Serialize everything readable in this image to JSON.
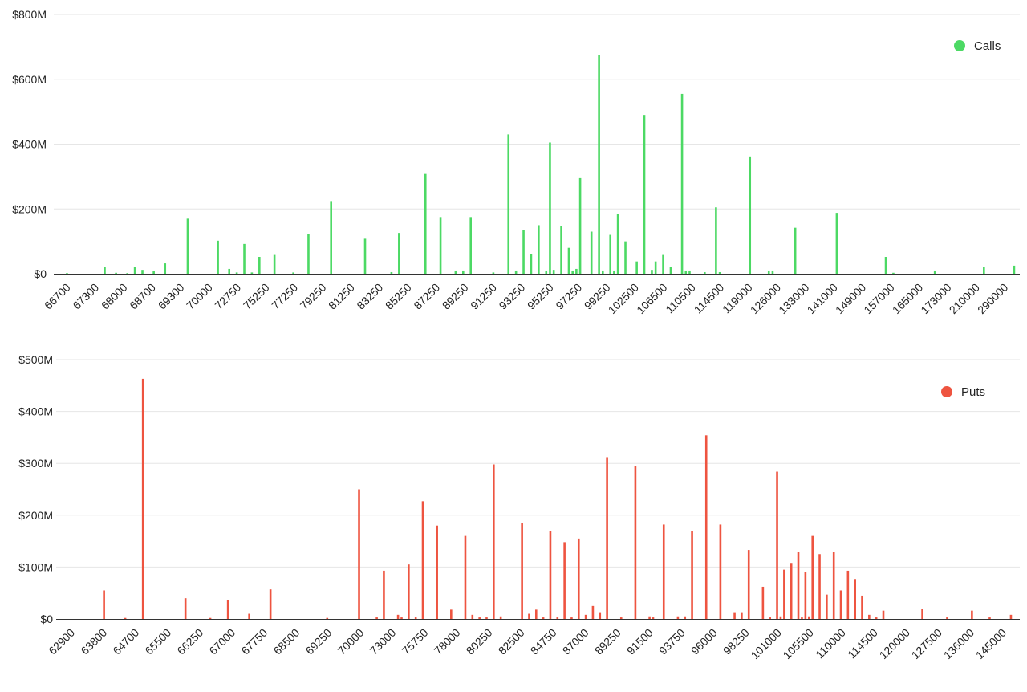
{
  "chart_data": [
    {
      "type": "bar",
      "ylim": [
        0,
        800000000
      ],
      "y_ticks": [
        {
          "value": 0,
          "label": "$0"
        },
        {
          "value": 200000000,
          "label": "$200M"
        },
        {
          "value": 400000000,
          "label": "$400M"
        },
        {
          "value": 600000000,
          "label": "$600M"
        },
        {
          "value": 800000000,
          "label": "$800M"
        }
      ],
      "grid": true,
      "legend_position": "top-right",
      "color": "#4cd964",
      "series": [
        {
          "name": "Calls",
          "values": [
            0,
            0,
            0,
            2,
            0,
            0,
            0,
            0,
            0,
            0,
            0,
            0,
            0,
            20,
            0,
            0,
            3,
            0,
            0,
            2,
            0,
            20,
            0,
            12,
            0,
            0,
            8,
            0,
            0,
            32,
            0,
            0,
            0,
            0,
            0,
            170,
            0,
            0,
            0,
            0,
            0,
            0,
            0,
            102,
            0,
            0,
            15,
            0,
            4,
            0,
            92,
            0,
            4,
            0,
            52,
            0,
            0,
            0,
            58,
            0,
            0,
            0,
            0,
            4,
            0,
            0,
            0,
            122,
            0,
            0,
            0,
            0,
            0,
            222,
            0,
            0,
            0,
            0,
            0,
            0,
            0,
            0,
            108,
            0,
            0,
            0,
            0,
            0,
            0,
            5,
            0,
            126,
            0,
            0,
            0,
            0,
            0,
            0,
            308,
            0,
            0,
            0,
            175,
            0,
            0,
            0,
            10,
            0,
            10,
            0,
            175,
            0,
            0,
            0,
            0,
            0,
            4,
            0,
            0,
            0,
            430,
            0,
            10,
            0,
            135,
            0,
            60,
            0,
            150,
            0,
            10,
            405,
            12,
            0,
            148,
            0,
            80,
            10,
            15,
            295,
            0,
            0,
            130,
            0,
            675,
            10,
            0,
            120,
            10,
            185,
            0,
            100,
            0,
            0,
            38,
            0,
            490,
            0,
            12,
            38,
            0,
            58,
            0,
            20,
            0,
            0,
            555,
            10,
            10,
            0,
            0,
            0,
            5,
            0,
            0,
            205,
            5,
            0,
            0,
            0,
            0,
            0,
            0,
            0,
            362,
            0,
            0,
            0,
            0,
            10,
            10,
            0,
            0,
            0,
            0,
            0,
            142,
            0,
            0,
            0,
            0,
            0,
            0,
            0,
            0,
            0,
            0,
            188,
            0,
            0,
            0,
            0,
            0,
            0,
            0,
            0,
            0,
            0,
            0,
            0,
            52,
            0,
            3,
            0,
            0,
            0,
            0,
            0,
            0,
            0,
            0,
            0,
            0,
            10,
            0,
            0,
            0,
            0,
            0,
            0,
            0,
            0,
            0,
            0,
            0,
            0,
            22,
            0,
            0,
            0,
            0,
            0,
            0,
            0,
            25,
            0
          ]
        }
      ],
      "x_tick_labels": [
        "66700",
        "67300",
        "68000",
        "68700",
        "69300",
        "70000",
        "72750",
        "75250",
        "77250",
        "79250",
        "81250",
        "83250",
        "85250",
        "87250",
        "89250",
        "91250",
        "93250",
        "95250",
        "97250",
        "99250",
        "102500",
        "106500",
        "110500",
        "114500",
        "119000",
        "126000",
        "133000",
        "141000",
        "149000",
        "157000",
        "165000",
        "173000",
        "210000",
        "290000"
      ],
      "value_scale": 1000000
    },
    {
      "type": "bar",
      "ylim": [
        0,
        500000000
      ],
      "y_ticks": [
        {
          "value": 0,
          "label": "$0"
        },
        {
          "value": 100000000,
          "label": "$100M"
        },
        {
          "value": 200000000,
          "label": "$200M"
        },
        {
          "value": 300000000,
          "label": "$300M"
        },
        {
          "value": 400000000,
          "label": "$400M"
        },
        {
          "value": 500000000,
          "label": "$500M"
        }
      ],
      "grid": true,
      "legend_position": "top-right",
      "color": "#ee5440",
      "series": [
        {
          "name": "Puts",
          "values": [
            0,
            0,
            0,
            0,
            0,
            0,
            0,
            0,
            0,
            0,
            0,
            0,
            0,
            55,
            0,
            0,
            0,
            0,
            0,
            2,
            0,
            0,
            0,
            0,
            463,
            0,
            0,
            0,
            0,
            0,
            0,
            0,
            0,
            0,
            0,
            0,
            40,
            0,
            0,
            0,
            0,
            0,
            0,
            2,
            0,
            0,
            0,
            0,
            37,
            0,
            0,
            0,
            0,
            0,
            10,
            0,
            0,
            0,
            0,
            0,
            57,
            0,
            0,
            0,
            0,
            0,
            0,
            0,
            0,
            0,
            0,
            0,
            0,
            0,
            0,
            0,
            2,
            0,
            0,
            0,
            0,
            0,
            0,
            0,
            0,
            250,
            0,
            0,
            0,
            0,
            3,
            0,
            93,
            0,
            0,
            0,
            8,
            3,
            0,
            105,
            0,
            3,
            0,
            227,
            0,
            0,
            0,
            180,
            0,
            0,
            0,
            18,
            0,
            0,
            0,
            160,
            0,
            8,
            0,
            3,
            0,
            3,
            0,
            298,
            0,
            5,
            0,
            0,
            0,
            0,
            0,
            185,
            0,
            10,
            0,
            18,
            0,
            3,
            0,
            170,
            0,
            3,
            0,
            148,
            0,
            3,
            0,
            155,
            0,
            8,
            0,
            25,
            0,
            13,
            0,
            312,
            0,
            0,
            0,
            3,
            0,
            0,
            0,
            295,
            0,
            0,
            0,
            5,
            3,
            0,
            0,
            182,
            0,
            0,
            0,
            5,
            0,
            5,
            0,
            170,
            0,
            0,
            0,
            354,
            0,
            0,
            0,
            182,
            0,
            0,
            0,
            13,
            0,
            13,
            0,
            133,
            0,
            0,
            0,
            62,
            0,
            3,
            0,
            284,
            5,
            95,
            0,
            108,
            0,
            130,
            3,
            90,
            5,
            160,
            0,
            125,
            0,
            47,
            0,
            130,
            0,
            55,
            0,
            93,
            0,
            77,
            0,
            45,
            0,
            8,
            0,
            3,
            0,
            16,
            0,
            0,
            0,
            0,
            0,
            0,
            0,
            0,
            0,
            0,
            20,
            0,
            0,
            0,
            0,
            0,
            0,
            3,
            0,
            0,
            0,
            0,
            0,
            0,
            16,
            0,
            0,
            0,
            0,
            3,
            0,
            0,
            0,
            0,
            0,
            8,
            0,
            0
          ]
        }
      ],
      "x_tick_labels": [
        "62900",
        "63800",
        "64700",
        "65500",
        "66250",
        "67000",
        "67750",
        "68500",
        "69250",
        "70000",
        "73000",
        "75750",
        "78000",
        "80250",
        "82500",
        "84750",
        "87000",
        "89250",
        "91500",
        "93750",
        "96000",
        "98250",
        "101000",
        "105500",
        "110000",
        "114500",
        "120000",
        "127500",
        "136000",
        "145000"
      ],
      "value_scale": 1000000
    }
  ]
}
